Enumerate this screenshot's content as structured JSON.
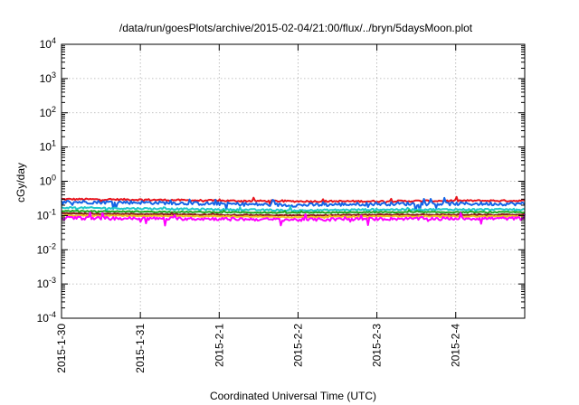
{
  "chart_data": {
    "type": "line",
    "title": "/data/run/goesPlots/archive/2015-02-04/21:00/flux/../bryn/5daysMoon.plot",
    "xlabel": "Coordinated Universal Time (UTC)",
    "ylabel": "cGy/day",
    "yscale": "log",
    "ylim": [
      0.0001,
      10000
    ],
    "xlim": [
      "2015-01-30 00:00",
      "2015-02-04 21:00"
    ],
    "grid": true,
    "y_ticks": [
      {
        "base": "10",
        "exp": "4"
      },
      {
        "base": "10",
        "exp": "3"
      },
      {
        "base": "10",
        "exp": "2"
      },
      {
        "base": "10",
        "exp": "1"
      },
      {
        "base": "10",
        "exp": "0"
      },
      {
        "base": "10",
        "exp": "-1"
      },
      {
        "base": "10",
        "exp": "-2"
      },
      {
        "base": "10",
        "exp": "-3"
      },
      {
        "base": "10",
        "exp": "-4"
      }
    ],
    "x_ticks": [
      "2015-1-30",
      "2015-1-31",
      "2015-2-1",
      "2015-2-2",
      "2015-2-3",
      "2015-2-4"
    ],
    "series": [
      {
        "color": "#e8141c",
        "x": [
          "2015-01-30 00:00",
          "2015-01-31 00:00",
          "2015-02-01 00:00",
          "2015-02-02 00:00",
          "2015-02-03 00:00",
          "2015-02-04 00:00",
          "2015-02-04 21:00"
        ],
        "y": [
          0.3,
          0.29,
          0.27,
          0.26,
          0.26,
          0.27,
          0.27
        ],
        "noise": 0.05
      },
      {
        "color": "#1464e6",
        "x": [
          "2015-01-30 00:00",
          "2015-01-31 00:00",
          "2015-02-01 00:00",
          "2015-02-02 00:00",
          "2015-02-03 00:00",
          "2015-02-04 00:00",
          "2015-02-04 21:00"
        ],
        "y": [
          0.25,
          0.24,
          0.22,
          0.2,
          0.22,
          0.22,
          0.22
        ],
        "noise": 0.1
      },
      {
        "color": "#1ec8c8",
        "x": [
          "2015-01-30 00:00",
          "2015-01-31 00:00",
          "2015-02-01 00:00",
          "2015-02-02 00:00",
          "2015-02-03 00:00",
          "2015-02-04 00:00",
          "2015-02-04 21:00"
        ],
        "y": [
          0.17,
          0.16,
          0.15,
          0.14,
          0.15,
          0.15,
          0.15
        ],
        "noise": 0.05
      },
      {
        "color": "#1fa81f",
        "x": [
          "2015-01-30 00:00",
          "2015-01-31 00:00",
          "2015-02-01 00:00",
          "2015-02-02 00:00",
          "2015-02-03 00:00",
          "2015-02-04 00:00",
          "2015-02-04 21:00"
        ],
        "y": [
          0.135,
          0.13,
          0.125,
          0.12,
          0.125,
          0.125,
          0.125
        ],
        "noise": 0.03
      },
      {
        "color": "#8b1a1a",
        "x": [
          "2015-01-30 00:00",
          "2015-01-31 00:00",
          "2015-02-01 00:00",
          "2015-02-02 00:00",
          "2015-02-03 00:00",
          "2015-02-04 00:00",
          "2015-02-04 21:00"
        ],
        "y": [
          0.115,
          0.11,
          0.105,
          0.1,
          0.105,
          0.105,
          0.105
        ],
        "noise": 0.03
      },
      {
        "color": "#f0c020",
        "x": [
          "2015-01-30 00:00",
          "2015-01-31 00:00",
          "2015-02-01 00:00",
          "2015-02-02 00:00",
          "2015-02-03 00:00",
          "2015-02-04 00:00",
          "2015-02-04 21:00"
        ],
        "y": [
          0.1,
          0.098,
          0.095,
          0.09,
          0.095,
          0.095,
          0.095
        ],
        "noise": 0.03
      },
      {
        "color": "#ff00ff",
        "x": [
          "2015-01-30 00:00",
          "2015-01-31 00:00",
          "2015-02-01 00:00",
          "2015-02-02 00:00",
          "2015-02-03 00:00",
          "2015-02-04 00:00",
          "2015-02-04 21:00"
        ],
        "y": [
          0.085,
          0.082,
          0.08,
          0.075,
          0.08,
          0.082,
          0.082
        ],
        "noise": 0.09
      }
    ]
  }
}
